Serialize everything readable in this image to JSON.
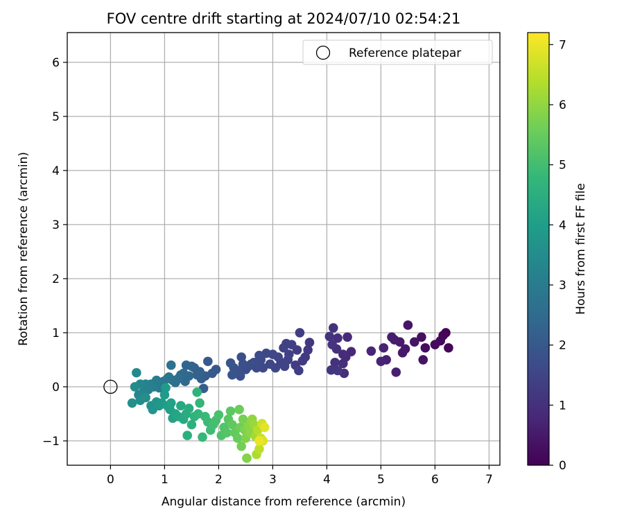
{
  "chart_data": {
    "type": "scatter",
    "title": "FOV centre drift starting at 2024/07/10 02:54:21",
    "xlabel": "Angular distance from reference (arcmin)",
    "ylabel": "Rotation from reference (arcmin)",
    "xlim": [
      -0.8,
      7.2
    ],
    "ylim": [
      -1.45,
      6.55
    ],
    "xticks": [
      0,
      1,
      2,
      3,
      4,
      5,
      6,
      7
    ],
    "yticks": [
      -1,
      0,
      1,
      2,
      3,
      4,
      5,
      6
    ],
    "grid": true,
    "legend": {
      "placement": "top-right",
      "entries": [
        "Reference platepar"
      ]
    },
    "reference_point": {
      "x": 0,
      "y": 0
    },
    "colorbar": {
      "label": "Hours from first FF file",
      "range": [
        0,
        7.2
      ],
      "ticks": [
        0,
        1,
        2,
        3,
        4,
        5,
        6,
        7
      ],
      "colormap": "viridis",
      "colors": [
        "#440154",
        "#482878",
        "#3e4989",
        "#31688e",
        "#26828e",
        "#1f9e89",
        "#35b779",
        "#6ece58",
        "#b5de2b",
        "#fde725"
      ]
    },
    "points": [
      [
        6.2,
        1.0,
        0.05
      ],
      [
        6.15,
        0.95,
        0.1
      ],
      [
        6.25,
        0.72,
        0.12
      ],
      [
        6.1,
        0.85,
        0.15
      ],
      [
        6.0,
        0.78,
        0.2
      ],
      [
        5.82,
        0.72,
        0.25
      ],
      [
        5.75,
        0.92,
        0.3
      ],
      [
        5.78,
        0.5,
        0.35
      ],
      [
        5.62,
        0.83,
        0.38
      ],
      [
        5.5,
        1.14,
        0.4
      ],
      [
        5.45,
        0.7,
        0.45
      ],
      [
        5.4,
        0.63,
        0.5
      ],
      [
        5.35,
        0.83,
        0.52
      ],
      [
        5.25,
        0.87,
        0.55
      ],
      [
        5.2,
        0.92,
        0.6
      ],
      [
        5.28,
        0.27,
        0.62
      ],
      [
        5.1,
        0.5,
        0.65
      ],
      [
        5.05,
        0.72,
        0.7
      ],
      [
        5.0,
        0.47,
        0.72
      ],
      [
        4.82,
        0.66,
        0.75
      ],
      [
        4.45,
        0.65,
        0.8
      ],
      [
        4.38,
        0.92,
        0.85
      ],
      [
        4.35,
        0.55,
        0.88
      ],
      [
        4.3,
        0.6,
        0.9
      ],
      [
        4.32,
        0.25,
        0.92
      ],
      [
        4.3,
        0.43,
        0.95
      ],
      [
        4.2,
        0.9,
        0.98
      ],
      [
        4.18,
        0.7,
        1.0
      ],
      [
        4.15,
        0.45,
        1.02
      ],
      [
        4.12,
        1.09,
        1.05
      ],
      [
        4.1,
        0.78,
        1.08
      ],
      [
        4.05,
        0.93,
        1.1
      ],
      [
        4.08,
        0.31,
        1.12
      ],
      [
        4.2,
        0.3,
        1.14
      ],
      [
        3.68,
        0.82,
        1.18
      ],
      [
        3.65,
        0.68,
        1.2
      ],
      [
        3.6,
        0.55,
        1.22
      ],
      [
        3.55,
        0.48,
        1.25
      ],
      [
        3.5,
        1.0,
        1.28
      ],
      [
        3.45,
        0.68,
        1.3
      ],
      [
        3.42,
        0.4,
        1.32
      ],
      [
        3.48,
        0.3,
        1.34
      ],
      [
        3.35,
        0.78,
        1.36
      ],
      [
        3.3,
        0.6,
        1.38
      ],
      [
        3.28,
        0.5,
        1.4
      ],
      [
        3.25,
        0.8,
        1.42
      ],
      [
        3.2,
        0.72,
        1.44
      ],
      [
        3.15,
        0.45,
        1.46
      ],
      [
        3.22,
        0.38,
        1.48
      ],
      [
        3.1,
        0.55,
        1.5
      ],
      [
        3.05,
        0.35,
        1.52
      ],
      [
        3.0,
        0.6,
        1.54
      ],
      [
        2.95,
        0.42,
        1.56
      ],
      [
        2.88,
        0.62,
        1.58
      ],
      [
        2.82,
        0.35,
        1.6
      ],
      [
        2.78,
        0.5,
        1.62
      ],
      [
        2.75,
        0.58,
        1.64
      ],
      [
        2.7,
        0.35,
        1.66
      ],
      [
        2.65,
        0.45,
        1.68
      ],
      [
        2.6,
        0.42,
        1.7
      ],
      [
        2.55,
        0.38,
        1.72
      ],
      [
        2.5,
        0.32,
        1.74
      ],
      [
        2.45,
        0.42,
        1.76
      ],
      [
        2.42,
        0.55,
        1.78
      ],
      [
        2.38,
        0.3,
        1.8
      ],
      [
        2.4,
        0.2,
        1.82
      ],
      [
        2.32,
        0.25,
        1.84
      ],
      [
        2.28,
        0.35,
        1.86
      ],
      [
        2.25,
        0.22,
        1.88
      ],
      [
        2.22,
        0.44,
        1.9
      ],
      [
        1.95,
        0.32,
        1.95
      ],
      [
        1.88,
        0.25,
        2.0
      ],
      [
        1.8,
        0.47,
        2.05
      ],
      [
        1.75,
        0.2,
        2.1
      ],
      [
        1.72,
        -0.03,
        2.12
      ],
      [
        1.68,
        0.15,
        2.15
      ],
      [
        1.65,
        0.28,
        2.2
      ],
      [
        1.6,
        0.22,
        2.25
      ],
      [
        1.55,
        0.35,
        2.28
      ],
      [
        1.5,
        0.38,
        2.3
      ],
      [
        1.45,
        0.2,
        2.35
      ],
      [
        1.4,
        0.4,
        2.38
      ],
      [
        1.38,
        0.1,
        2.4
      ],
      [
        1.35,
        0.25,
        2.45
      ],
      [
        1.3,
        0.22,
        2.5
      ],
      [
        1.25,
        0.15,
        2.55
      ],
      [
        1.2,
        0.08,
        2.6
      ],
      [
        1.15,
        0.12,
        2.65
      ],
      [
        1.12,
        0.4,
        2.7
      ],
      [
        1.08,
        0.18,
        2.75
      ],
      [
        1.05,
        0.15,
        2.8
      ],
      [
        0.98,
        0.1,
        2.85
      ],
      [
        0.95,
        0.05,
        2.9
      ],
      [
        0.9,
        -0.02,
        2.95
      ],
      [
        0.85,
        0.12,
        3.0
      ],
      [
        0.8,
        0.0,
        3.05
      ],
      [
        0.75,
        0.05,
        3.1
      ],
      [
        0.7,
        -0.05,
        3.15
      ],
      [
        0.65,
        0.05,
        3.2
      ],
      [
        0.6,
        -0.1,
        3.25
      ],
      [
        0.55,
        0.05,
        3.3
      ],
      [
        0.52,
        -0.15,
        3.35
      ],
      [
        0.48,
        0.26,
        3.4
      ],
      [
        0.45,
        0.0,
        3.45
      ],
      [
        0.55,
        -0.25,
        3.5
      ],
      [
        0.65,
        -0.2,
        3.55
      ],
      [
        0.4,
        -0.3,
        3.6
      ],
      [
        0.75,
        -0.35,
        3.65
      ],
      [
        0.78,
        -0.42,
        3.7
      ],
      [
        0.85,
        -0.28,
        3.75
      ],
      [
        0.9,
        -0.35,
        3.8
      ],
      [
        0.95,
        -0.3,
        3.85
      ],
      [
        1.0,
        -0.15,
        3.9
      ],
      [
        1.02,
        -0.02,
        3.95
      ],
      [
        1.05,
        -0.35,
        4.0
      ],
      [
        1.1,
        -0.42,
        4.05
      ],
      [
        1.12,
        -0.3,
        4.1
      ],
      [
        1.15,
        -0.58,
        4.15
      ],
      [
        1.2,
        -0.5,
        4.2
      ],
      [
        1.25,
        -0.55,
        4.25
      ],
      [
        1.3,
        -0.35,
        4.3
      ],
      [
        1.35,
        -0.6,
        4.35
      ],
      [
        1.4,
        -0.5,
        4.4
      ],
      [
        1.45,
        -0.4,
        4.45
      ],
      [
        1.42,
        -0.9,
        4.5
      ],
      [
        1.5,
        -0.7,
        4.55
      ],
      [
        1.55,
        -0.55,
        4.6
      ],
      [
        1.6,
        -0.1,
        4.65
      ],
      [
        1.62,
        -0.5,
        4.7
      ],
      [
        1.65,
        -0.3,
        4.75
      ],
      [
        1.7,
        -0.93,
        4.8
      ],
      [
        1.75,
        -0.55,
        4.85
      ],
      [
        1.8,
        -0.65,
        4.9
      ],
      [
        1.85,
        -0.8,
        4.95
      ],
      [
        1.9,
        -0.7,
        5.0
      ],
      [
        1.95,
        -0.62,
        5.05
      ],
      [
        2.0,
        -0.52,
        5.1
      ],
      [
        2.05,
        -0.9,
        5.15
      ],
      [
        2.1,
        -0.75,
        5.2
      ],
      [
        2.15,
        -0.85,
        5.25
      ],
      [
        2.18,
        -0.6,
        5.3
      ],
      [
        2.22,
        -0.45,
        5.35
      ],
      [
        2.25,
        -0.7,
        5.4
      ],
      [
        2.3,
        -0.85,
        5.45
      ],
      [
        2.35,
        -0.95,
        5.5
      ],
      [
        2.38,
        -0.42,
        5.55
      ],
      [
        2.4,
        -0.75,
        5.6
      ],
      [
        2.42,
        -1.1,
        5.65
      ],
      [
        2.45,
        -0.6,
        5.7
      ],
      [
        2.48,
        -0.8,
        5.75
      ],
      [
        2.5,
        -0.95,
        5.8
      ],
      [
        2.52,
        -1.32,
        5.85
      ],
      [
        2.55,
        -0.72,
        5.9
      ],
      [
        2.58,
        -0.85,
        5.95
      ],
      [
        2.62,
        -0.6,
        6.0
      ],
      [
        2.65,
        -0.7,
        6.1
      ],
      [
        2.68,
        -0.92,
        6.2
      ],
      [
        2.7,
        -1.25,
        6.3
      ],
      [
        2.72,
        -0.8,
        6.4
      ],
      [
        2.75,
        -1.15,
        6.5
      ],
      [
        2.78,
        -0.95,
        6.6
      ],
      [
        2.8,
        -0.68,
        6.7
      ],
      [
        2.82,
        -1.0,
        6.8
      ],
      [
        2.85,
        -0.75,
        6.9
      ],
      [
        2.75,
        -1.0,
        7.0
      ]
    ]
  }
}
